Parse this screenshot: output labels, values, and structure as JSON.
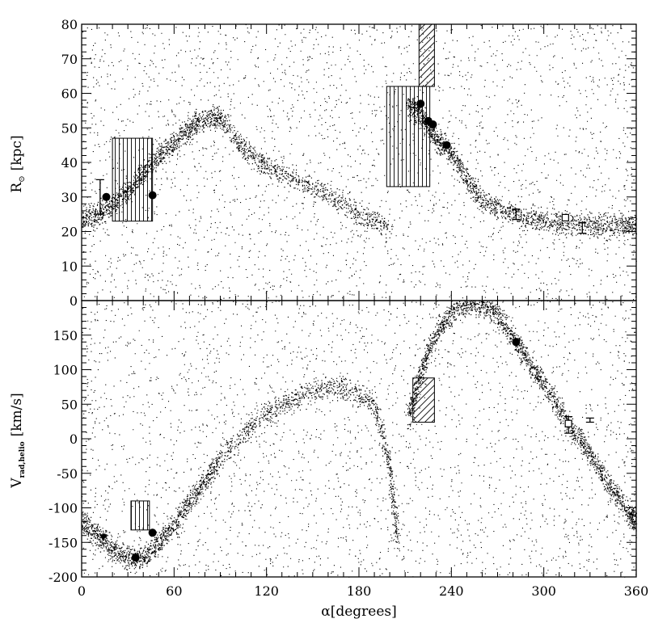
{
  "chart_data": [
    {
      "type": "scatter",
      "panel": "top",
      "ylabel": "R",
      "ylabel_sub": "⊙",
      "ylabel_unit": "[kpc]",
      "xlim": [
        0,
        360
      ],
      "ylim": [
        0,
        80
      ],
      "x_ticks": [
        0,
        60,
        120,
        180,
        240,
        300,
        360
      ],
      "y_ticks": [
        0,
        10,
        20,
        30,
        40,
        50,
        60,
        70,
        80
      ],
      "y_tick_labels": [
        "0",
        "10",
        "20",
        "30",
        "40",
        "50",
        "60",
        "70",
        "80"
      ],
      "grid": false,
      "stream_trace": [
        [
          0,
          23
        ],
        [
          10,
          25
        ],
        [
          20,
          28
        ],
        [
          30,
          32
        ],
        [
          40,
          37
        ],
        [
          50,
          42
        ],
        [
          60,
          46
        ],
        [
          70,
          50
        ],
        [
          80,
          53
        ],
        [
          90,
          53
        ],
        [
          105,
          44
        ],
        [
          120,
          39
        ],
        [
          140,
          35
        ],
        [
          160,
          31
        ],
        [
          180,
          25
        ],
        [
          200,
          21
        ],
        [
          212,
          57
        ],
        [
          218,
          55
        ],
        [
          225,
          50
        ],
        [
          232,
          46
        ],
        [
          240,
          43
        ],
        [
          250,
          35
        ],
        [
          260,
          29
        ],
        [
          275,
          26
        ],
        [
          290,
          24
        ],
        [
          305,
          23
        ],
        [
          320,
          22
        ],
        [
          335,
          22
        ],
        [
          350,
          22
        ],
        [
          360,
          22
        ]
      ],
      "boxes": [
        {
          "x": [
            20,
            46
          ],
          "y": [
            23,
            47
          ],
          "hatch": "vertical"
        },
        {
          "x": [
            198,
            226
          ],
          "y": [
            33,
            62
          ],
          "hatch": "vertical"
        },
        {
          "x": [
            219,
            229
          ],
          "y": [
            62,
            80
          ],
          "hatch": "diagonal"
        }
      ],
      "filled_circles": [
        [
          16,
          30
        ],
        [
          46,
          30.5
        ],
        [
          220,
          57
        ],
        [
          225,
          52
        ],
        [
          228,
          51
        ],
        [
          237,
          45
        ]
      ],
      "open_squares": [
        [
          314,
          24
        ]
      ],
      "error_bars": [
        {
          "x": 12,
          "y": 30,
          "lo": 25,
          "hi": 35
        },
        {
          "x": 282,
          "y": 25,
          "lo": 23.5,
          "hi": 26.5
        },
        {
          "x": 325,
          "y": 21,
          "lo": 19.5,
          "hi": 22.5
        }
      ]
    },
    {
      "type": "scatter",
      "panel": "bottom",
      "xlabel": "α[degrees]",
      "ylabel": "V",
      "ylabel_sub": "rad,helio",
      "ylabel_unit": "[km/s]",
      "xlim": [
        0,
        360
      ],
      "ylim": [
        -200,
        200
      ],
      "x_ticks": [
        0,
        60,
        120,
        180,
        240,
        300,
        360
      ],
      "x_tick_labels": [
        "0",
        "60",
        "120",
        "180",
        "240",
        "300",
        "360"
      ],
      "y_ticks": [
        -200,
        -150,
        -100,
        -50,
        0,
        50,
        100,
        150
      ],
      "y_tick_labels": [
        "-200",
        "-150",
        "-100",
        "-50",
        "0",
        "50",
        "100",
        "150"
      ],
      "grid": false,
      "stream_trace": [
        [
          0,
          -120
        ],
        [
          10,
          -140
        ],
        [
          20,
          -160
        ],
        [
          30,
          -172
        ],
        [
          40,
          -172
        ],
        [
          50,
          -150
        ],
        [
          60,
          -125
        ],
        [
          70,
          -90
        ],
        [
          80,
          -60
        ],
        [
          90,
          -30
        ],
        [
          110,
          20
        ],
        [
          130,
          50
        ],
        [
          150,
          70
        ],
        [
          170,
          75
        ],
        [
          190,
          50
        ],
        [
          200,
          -40
        ],
        [
          205,
          -150
        ],
        [
          212,
          30
        ],
        [
          218,
          80
        ],
        [
          225,
          130
        ],
        [
          235,
          170
        ],
        [
          245,
          192
        ],
        [
          255,
          198
        ],
        [
          265,
          190
        ],
        [
          275,
          165
        ],
        [
          285,
          130
        ],
        [
          295,
          95
        ],
        [
          305,
          60
        ],
        [
          315,
          25
        ],
        [
          325,
          -5
        ],
        [
          335,
          -40
        ],
        [
          345,
          -75
        ],
        [
          355,
          -105
        ],
        [
          360,
          -120
        ]
      ],
      "boxes": [
        {
          "x": [
            32,
            44
          ],
          "y": [
            -132,
            -90
          ],
          "hatch": "vertical"
        },
        {
          "x": [
            215,
            229
          ],
          "y": [
            24,
            88
          ],
          "hatch": "diagonal"
        }
      ],
      "filled_circles": [
        [
          282,
          140
        ],
        [
          46,
          -136
        ],
        [
          35,
          -172
        ]
      ],
      "filled_triangles": [
        [
          14,
          -143
        ]
      ],
      "open_squares": [
        [
          316,
          22
        ]
      ],
      "error_bars": [
        {
          "x": 316,
          "y": 20,
          "lo": 8,
          "hi": 32
        },
        {
          "x": 330,
          "y": 27,
          "lo": 24,
          "hi": 30
        }
      ]
    }
  ]
}
